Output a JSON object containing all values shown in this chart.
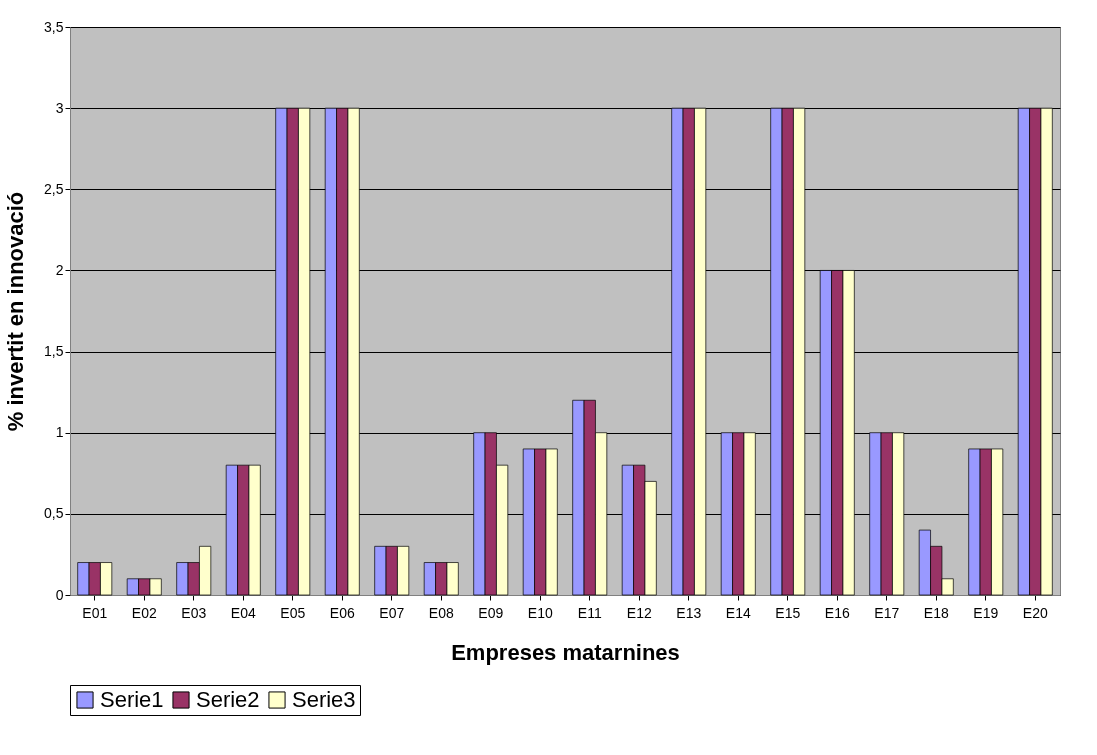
{
  "chart_data": {
    "type": "bar",
    "xlabel": "Empreses matarnines",
    "ylabel": "% invertit en innovació",
    "categories": [
      "E01",
      "E02",
      "E03",
      "E04",
      "E05",
      "E06",
      "E07",
      "E08",
      "E09",
      "E10",
      "E11",
      "E12",
      "E13",
      "E14",
      "E15",
      "E16",
      "E17",
      "E18",
      "E19",
      "E20"
    ],
    "series": [
      {
        "name": "Serie1",
        "color": "#9999ff",
        "values": [
          0.2,
          0.1,
          0.2,
          0.8,
          3,
          3,
          0.3,
          0.2,
          1,
          0.9,
          1.2,
          0.8,
          3,
          1,
          3,
          2,
          1,
          0.4,
          0.9,
          3
        ]
      },
      {
        "name": "Serie2",
        "color": "#993366",
        "values": [
          0.2,
          0.1,
          0.2,
          0.8,
          3,
          3,
          0.3,
          0.2,
          1,
          0.9,
          1.2,
          0.8,
          3,
          1,
          3,
          2,
          1,
          0.3,
          0.9,
          3
        ]
      },
      {
        "name": "Serie3",
        "color": "#ffffcc",
        "values": [
          0.2,
          0.1,
          0.3,
          0.8,
          3,
          3,
          0.3,
          0.2,
          0.8,
          0.9,
          1,
          0.7,
          3,
          1,
          3,
          2,
          1,
          0.1,
          0.9,
          3
        ]
      }
    ],
    "ylim": [
      0,
      3.5
    ],
    "yticks": [
      0,
      {
        "value": 0.5,
        "label": "0,5"
      },
      1,
      {
        "value": 1.5,
        "label": "1,5"
      },
      2,
      {
        "value": 2.5,
        "label": "2,5"
      },
      3,
      {
        "value": 3.5,
        "label": "3,5"
      }
    ],
    "grid": "y",
    "legend": "bottom"
  }
}
